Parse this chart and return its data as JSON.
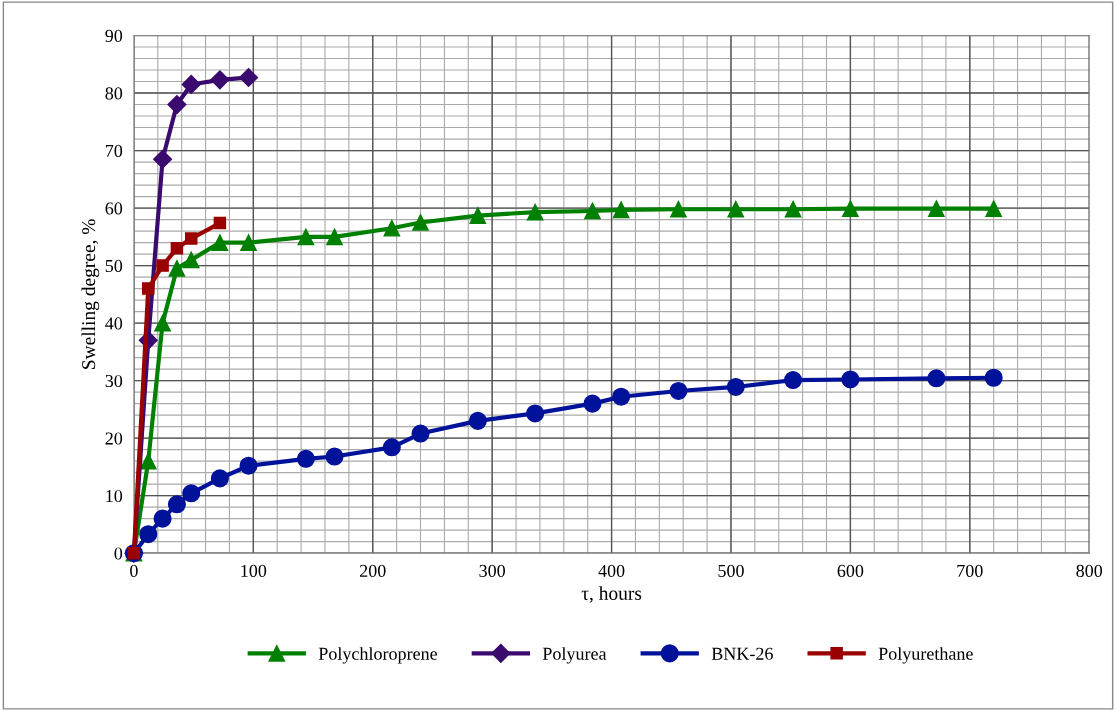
{
  "chart_data": {
    "type": "line",
    "xlabel": "τ, hours",
    "ylabel": "Swelling degree, %",
    "xlim": [
      0,
      800
    ],
    "xticks": [
      0,
      100,
      200,
      300,
      400,
      500,
      600,
      700,
      800
    ],
    "ylim": [
      0,
      90
    ],
    "yticks": [
      0,
      10,
      20,
      30,
      40,
      50,
      60,
      70,
      80,
      90
    ],
    "grid": true,
    "legend": "bottom",
    "line_style": "solid",
    "series": [
      {
        "name": "Polychloroprene",
        "color": "#008000",
        "marker": "triangle",
        "x": [
          0,
          12,
          24,
          36,
          48,
          72,
          96,
          144,
          168,
          216,
          240,
          288,
          336,
          384,
          408,
          456,
          504,
          552,
          600,
          672,
          720
        ],
        "values": [
          0,
          16,
          40,
          49.5,
          51,
          54,
          54,
          55,
          55,
          56.5,
          57.5,
          58.7,
          59.3,
          59.5,
          59.7,
          59.8,
          59.8,
          59.8,
          59.9,
          59.9,
          59.9
        ]
      },
      {
        "name": "Polyurea",
        "color": "#3b0a6e",
        "marker": "diamond",
        "x": [
          0,
          12,
          24,
          36,
          48,
          72,
          96
        ],
        "values": [
          0,
          37,
          68.5,
          78,
          81.5,
          82.3,
          82.7
        ]
      },
      {
        "name": "BNK-26",
        "color": "#00129a",
        "marker": "circle",
        "x": [
          0,
          12,
          24,
          36,
          48,
          72,
          96,
          144,
          168,
          216,
          240,
          288,
          336,
          384,
          408,
          456,
          504,
          552,
          600,
          672,
          720
        ],
        "values": [
          0,
          3.3,
          6,
          8.5,
          10.4,
          13,
          15.2,
          16.4,
          16.8,
          18.4,
          20.8,
          23,
          24.3,
          26,
          27.2,
          28.2,
          28.9,
          30.1,
          30.2,
          30.4,
          30.5
        ]
      },
      {
        "name": "Polyurethane",
        "color": "#9b0000",
        "marker": "square",
        "x": [
          0,
          12,
          24,
          36,
          48,
          72
        ],
        "values": [
          0,
          46,
          50,
          53,
          54.7,
          57.4
        ]
      }
    ]
  }
}
